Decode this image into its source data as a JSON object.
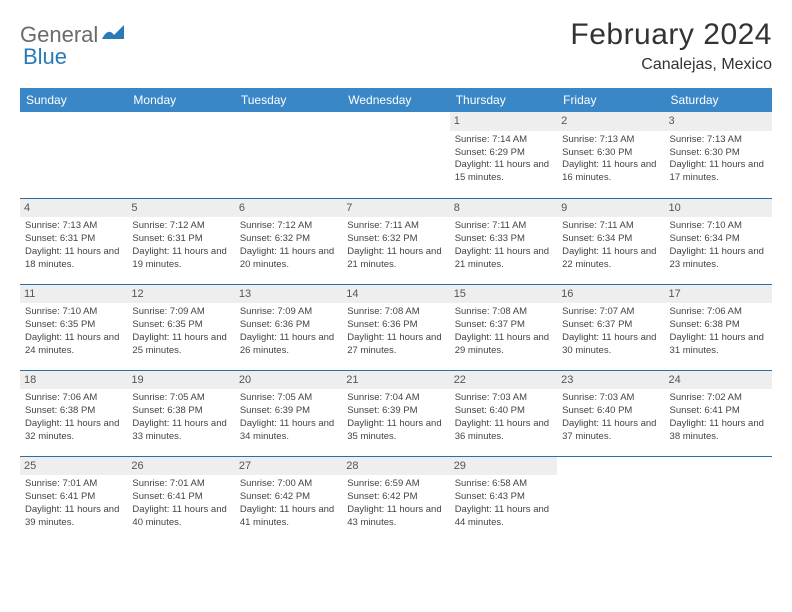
{
  "logo": {
    "general": "General",
    "blue": "Blue"
  },
  "title": "February 2024",
  "location": "Canalejas, Mexico",
  "colors": {
    "header_bg": "#3a87c7",
    "header_text": "#ffffff",
    "row_divider": "#2a6fa8",
    "daynum_bg": "#eeeeee",
    "text": "#444444",
    "logo_gray": "#6b6b6b",
    "logo_blue": "#2a7ab8"
  },
  "weekdays": [
    "Sunday",
    "Monday",
    "Tuesday",
    "Wednesday",
    "Thursday",
    "Friday",
    "Saturday"
  ],
  "weeks": [
    [
      {
        "day": "",
        "sunrise": "",
        "sunset": "",
        "daylight": ""
      },
      {
        "day": "",
        "sunrise": "",
        "sunset": "",
        "daylight": ""
      },
      {
        "day": "",
        "sunrise": "",
        "sunset": "",
        "daylight": ""
      },
      {
        "day": "",
        "sunrise": "",
        "sunset": "",
        "daylight": ""
      },
      {
        "day": "1",
        "sunrise": "Sunrise: 7:14 AM",
        "sunset": "Sunset: 6:29 PM",
        "daylight": "Daylight: 11 hours and 15 minutes."
      },
      {
        "day": "2",
        "sunrise": "Sunrise: 7:13 AM",
        "sunset": "Sunset: 6:30 PM",
        "daylight": "Daylight: 11 hours and 16 minutes."
      },
      {
        "day": "3",
        "sunrise": "Sunrise: 7:13 AM",
        "sunset": "Sunset: 6:30 PM",
        "daylight": "Daylight: 11 hours and 17 minutes."
      }
    ],
    [
      {
        "day": "4",
        "sunrise": "Sunrise: 7:13 AM",
        "sunset": "Sunset: 6:31 PM",
        "daylight": "Daylight: 11 hours and 18 minutes."
      },
      {
        "day": "5",
        "sunrise": "Sunrise: 7:12 AM",
        "sunset": "Sunset: 6:31 PM",
        "daylight": "Daylight: 11 hours and 19 minutes."
      },
      {
        "day": "6",
        "sunrise": "Sunrise: 7:12 AM",
        "sunset": "Sunset: 6:32 PM",
        "daylight": "Daylight: 11 hours and 20 minutes."
      },
      {
        "day": "7",
        "sunrise": "Sunrise: 7:11 AM",
        "sunset": "Sunset: 6:32 PM",
        "daylight": "Daylight: 11 hours and 21 minutes."
      },
      {
        "day": "8",
        "sunrise": "Sunrise: 7:11 AM",
        "sunset": "Sunset: 6:33 PM",
        "daylight": "Daylight: 11 hours and 21 minutes."
      },
      {
        "day": "9",
        "sunrise": "Sunrise: 7:11 AM",
        "sunset": "Sunset: 6:34 PM",
        "daylight": "Daylight: 11 hours and 22 minutes."
      },
      {
        "day": "10",
        "sunrise": "Sunrise: 7:10 AM",
        "sunset": "Sunset: 6:34 PM",
        "daylight": "Daylight: 11 hours and 23 minutes."
      }
    ],
    [
      {
        "day": "11",
        "sunrise": "Sunrise: 7:10 AM",
        "sunset": "Sunset: 6:35 PM",
        "daylight": "Daylight: 11 hours and 24 minutes."
      },
      {
        "day": "12",
        "sunrise": "Sunrise: 7:09 AM",
        "sunset": "Sunset: 6:35 PM",
        "daylight": "Daylight: 11 hours and 25 minutes."
      },
      {
        "day": "13",
        "sunrise": "Sunrise: 7:09 AM",
        "sunset": "Sunset: 6:36 PM",
        "daylight": "Daylight: 11 hours and 26 minutes."
      },
      {
        "day": "14",
        "sunrise": "Sunrise: 7:08 AM",
        "sunset": "Sunset: 6:36 PM",
        "daylight": "Daylight: 11 hours and 27 minutes."
      },
      {
        "day": "15",
        "sunrise": "Sunrise: 7:08 AM",
        "sunset": "Sunset: 6:37 PM",
        "daylight": "Daylight: 11 hours and 29 minutes."
      },
      {
        "day": "16",
        "sunrise": "Sunrise: 7:07 AM",
        "sunset": "Sunset: 6:37 PM",
        "daylight": "Daylight: 11 hours and 30 minutes."
      },
      {
        "day": "17",
        "sunrise": "Sunrise: 7:06 AM",
        "sunset": "Sunset: 6:38 PM",
        "daylight": "Daylight: 11 hours and 31 minutes."
      }
    ],
    [
      {
        "day": "18",
        "sunrise": "Sunrise: 7:06 AM",
        "sunset": "Sunset: 6:38 PM",
        "daylight": "Daylight: 11 hours and 32 minutes."
      },
      {
        "day": "19",
        "sunrise": "Sunrise: 7:05 AM",
        "sunset": "Sunset: 6:38 PM",
        "daylight": "Daylight: 11 hours and 33 minutes."
      },
      {
        "day": "20",
        "sunrise": "Sunrise: 7:05 AM",
        "sunset": "Sunset: 6:39 PM",
        "daylight": "Daylight: 11 hours and 34 minutes."
      },
      {
        "day": "21",
        "sunrise": "Sunrise: 7:04 AM",
        "sunset": "Sunset: 6:39 PM",
        "daylight": "Daylight: 11 hours and 35 minutes."
      },
      {
        "day": "22",
        "sunrise": "Sunrise: 7:03 AM",
        "sunset": "Sunset: 6:40 PM",
        "daylight": "Daylight: 11 hours and 36 minutes."
      },
      {
        "day": "23",
        "sunrise": "Sunrise: 7:03 AM",
        "sunset": "Sunset: 6:40 PM",
        "daylight": "Daylight: 11 hours and 37 minutes."
      },
      {
        "day": "24",
        "sunrise": "Sunrise: 7:02 AM",
        "sunset": "Sunset: 6:41 PM",
        "daylight": "Daylight: 11 hours and 38 minutes."
      }
    ],
    [
      {
        "day": "25",
        "sunrise": "Sunrise: 7:01 AM",
        "sunset": "Sunset: 6:41 PM",
        "daylight": "Daylight: 11 hours and 39 minutes."
      },
      {
        "day": "26",
        "sunrise": "Sunrise: 7:01 AM",
        "sunset": "Sunset: 6:41 PM",
        "daylight": "Daylight: 11 hours and 40 minutes."
      },
      {
        "day": "27",
        "sunrise": "Sunrise: 7:00 AM",
        "sunset": "Sunset: 6:42 PM",
        "daylight": "Daylight: 11 hours and 41 minutes."
      },
      {
        "day": "28",
        "sunrise": "Sunrise: 6:59 AM",
        "sunset": "Sunset: 6:42 PM",
        "daylight": "Daylight: 11 hours and 43 minutes."
      },
      {
        "day": "29",
        "sunrise": "Sunrise: 6:58 AM",
        "sunset": "Sunset: 6:43 PM",
        "daylight": "Daylight: 11 hours and 44 minutes."
      },
      {
        "day": "",
        "sunrise": "",
        "sunset": "",
        "daylight": ""
      },
      {
        "day": "",
        "sunrise": "",
        "sunset": "",
        "daylight": ""
      }
    ]
  ]
}
